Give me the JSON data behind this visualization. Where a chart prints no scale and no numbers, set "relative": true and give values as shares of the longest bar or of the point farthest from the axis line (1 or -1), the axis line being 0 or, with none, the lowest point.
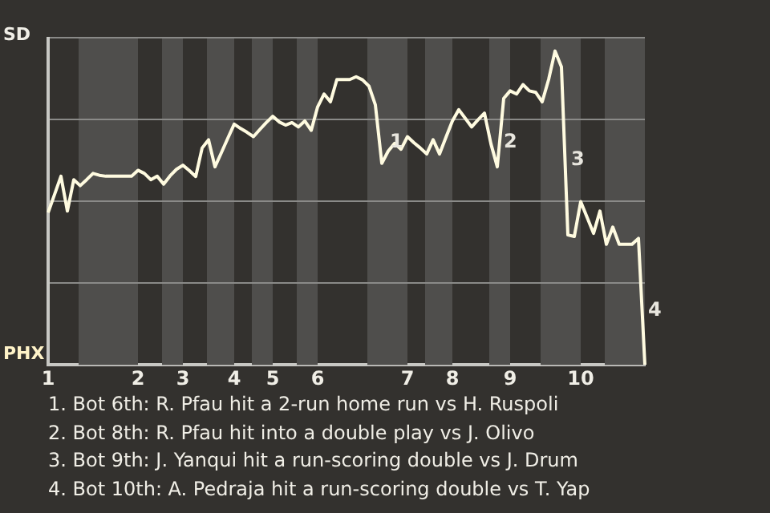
{
  "chart_data": {
    "type": "line",
    "relative": true,
    "categories": [
      "1",
      null,
      null,
      null,
      null,
      null,
      null,
      null,
      null,
      null,
      null,
      null,
      null,
      null,
      "2",
      null,
      null,
      null,
      null,
      null,
      null,
      "3",
      null,
      null,
      null,
      null,
      null,
      null,
      null,
      "4",
      null,
      null,
      null,
      null,
      null,
      "5",
      null,
      null,
      null,
      null,
      null,
      null,
      "6",
      null,
      null,
      null,
      null,
      null,
      null,
      null,
      null,
      null,
      null,
      null,
      null,
      null,
      "7",
      null,
      null,
      null,
      null,
      null,
      null,
      "8",
      null,
      null,
      null,
      null,
      null,
      null,
      null,
      null,
      "9",
      null,
      null,
      null,
      null,
      null,
      null,
      null,
      null,
      null,
      null,
      "10",
      null,
      null,
      null,
      null,
      null,
      null,
      null,
      null,
      null,
      null
    ],
    "series": [
      {
        "color": "#fffbe0",
        "values": [
          0.485,
          0.543,
          0.601,
          0.49,
          0.59,
          0.571,
          0.59,
          0.61,
          0.604,
          0.601,
          0.601,
          0.601,
          0.601,
          0.601,
          0.62,
          0.61,
          0.59,
          0.601,
          0.576,
          0.602,
          0.623,
          0.636,
          0.619,
          0.6,
          0.691,
          0.717,
          0.631,
          0.676,
          0.722,
          0.767,
          0.753,
          0.741,
          0.727,
          0.75,
          0.772,
          0.792,
          0.774,
          0.764,
          0.772,
          0.758,
          0.777,
          0.747,
          0.822,
          0.863,
          0.838,
          0.909,
          0.909,
          0.909,
          0.918,
          0.908,
          0.888,
          0.828,
          0.642,
          0.681,
          0.706,
          0.687,
          0.727,
          0.708,
          0.691,
          0.672,
          0.717,
          0.672,
          0.725,
          0.777,
          0.813,
          0.786,
          0.758,
          0.781,
          0.802,
          0.705,
          0.631,
          0.849,
          0.873,
          0.863,
          0.893,
          0.873,
          0.868,
          0.838,
          0.909,
          1,
          0.949,
          0.414,
          0.409,
          0.52,
          0.47,
          0.419,
          0.49,
          0.384,
          0.439,
          0.384,
          0.384,
          0.384,
          0.403,
          0
        ]
      }
    ],
    "grid": "y",
    "marker": "none",
    "line_style": "solid",
    "legend": false,
    "annotations": [
      "1",
      "2",
      "3",
      "4",
      "SD",
      "PHX",
      "1. Bot 6th: R. Pfau hit a 2-run home run vs H. Ruspoli",
      "2. Bot 8th: R. Pfau hit into a double play vs J. Olivo",
      "3. Bot 9th: J. Yanqui hit a run-scoring double vs J. Drum",
      "4. Bot 10th: A. Pedraja hit a run-scoring double vs T. Yap"
    ]
  }
}
